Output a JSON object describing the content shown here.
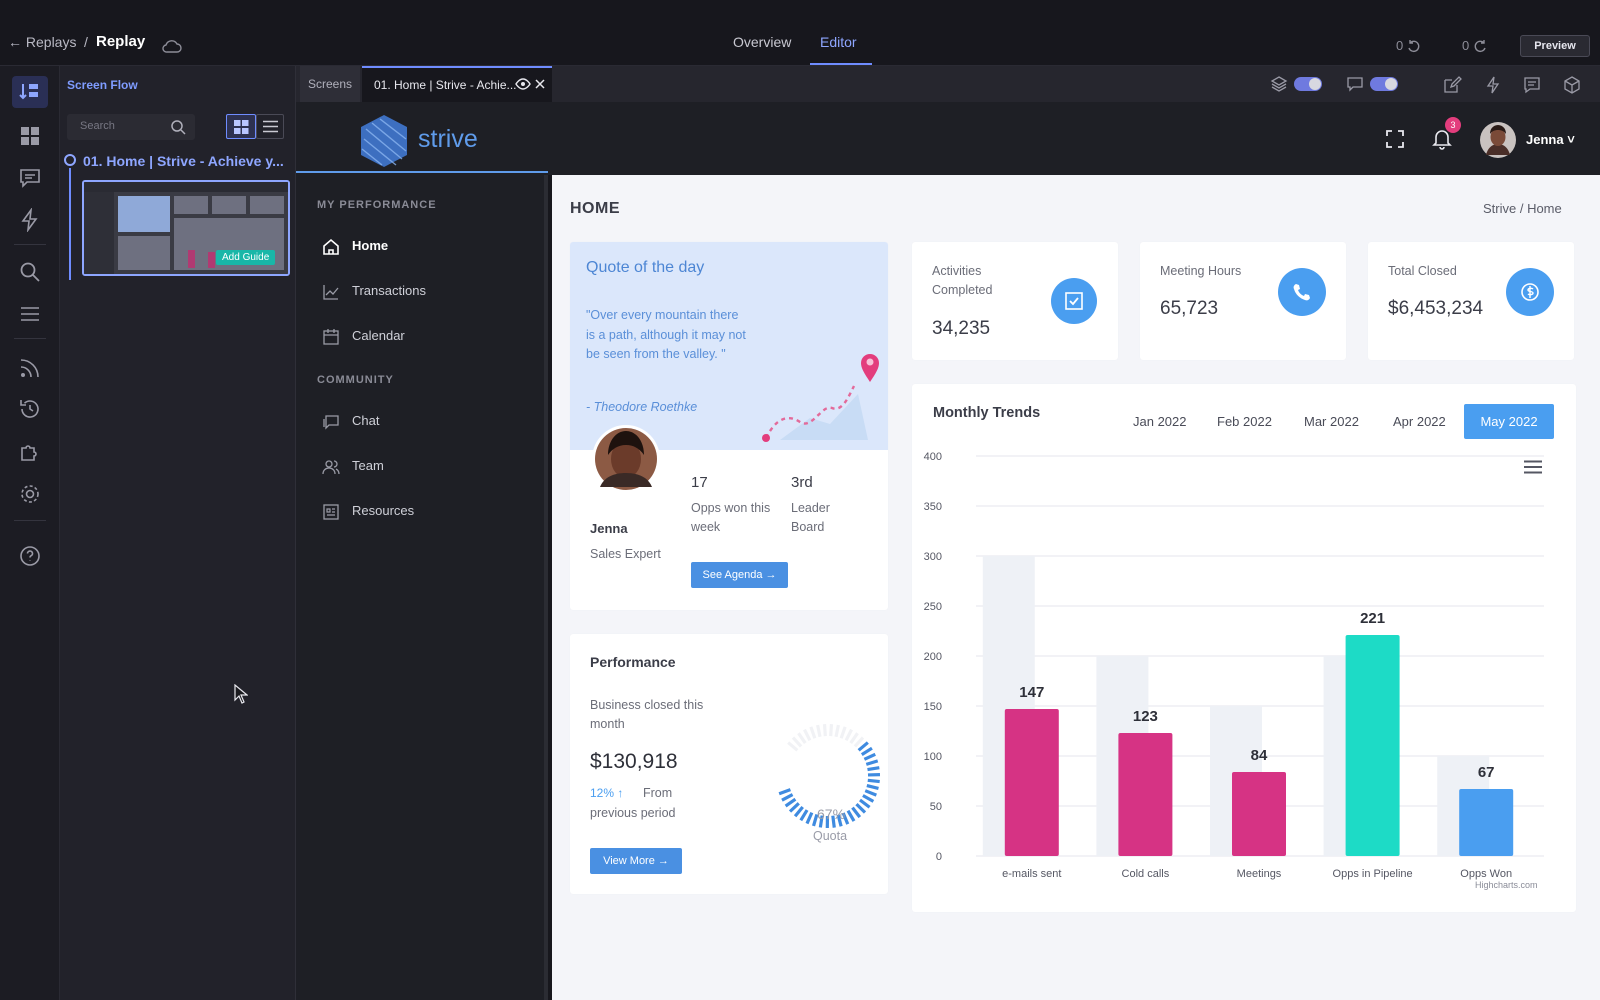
{
  "topbar": {
    "back_label": "Replays",
    "separator": "/",
    "current": "Replay",
    "tabs": [
      {
        "label": "Overview"
      },
      {
        "label": "Editor"
      }
    ],
    "undo_count": "0",
    "redo_count": "0",
    "preview_label": "Preview"
  },
  "flow": {
    "title": "Screen Flow",
    "search_placeholder": "Search",
    "item_label": "01. Home | Strive - Achieve y...",
    "add_guide_label": "Add Guide"
  },
  "tabs": {
    "screens_label": "Screens",
    "active_label": "01. Home | Strive - Achie..."
  },
  "app": {
    "brand": "strive",
    "user_name": "Jenna",
    "notification_count": "3",
    "sidebar": {
      "section1": "MY PERFORMANCE",
      "section2": "COMMUNITY",
      "items": [
        {
          "label": "Home",
          "icon": "home-icon"
        },
        {
          "label": "Transactions",
          "icon": "chart-line-icon"
        },
        {
          "label": "Calendar",
          "icon": "calendar-icon"
        },
        {
          "label": "Chat",
          "icon": "chat-icon"
        },
        {
          "label": "Team",
          "icon": "team-icon"
        },
        {
          "label": "Resources",
          "icon": "resources-icon"
        }
      ]
    }
  },
  "page": {
    "title": "HOME",
    "breadcrumb": "Strive  /  Home"
  },
  "quote": {
    "title": "Quote of the day",
    "text": "\"Over every mountain there is a path, although it may not be seen from the valley. \"",
    "author": "- Theodore Roethke"
  },
  "profile": {
    "name": "Jenna",
    "role": "Sales Expert",
    "stat1_value": "17",
    "stat1_label": "Opps won this week",
    "stat2_value": "3rd",
    "stat2_label": "Leader Board",
    "agenda_label": "See Agenda"
  },
  "kpis": [
    {
      "label": "Activities Completed",
      "value": "34,235",
      "icon": "checkbox-icon"
    },
    {
      "label": "Meeting Hours",
      "value": "65,723",
      "icon": "phone-icon"
    },
    {
      "label": "Total Closed",
      "value": "$6,453,234",
      "icon": "dollar-icon"
    }
  ],
  "performance": {
    "title": "Performance",
    "desc": "Business closed this month",
    "amount": "$130,918",
    "change": "12%",
    "change_text": "From",
    "change_text2": "previous period",
    "view_more_label": "View More",
    "gauge_pct": "67%",
    "gauge_label": "Quota",
    "gauge_value": 0.67
  },
  "trends": {
    "title": "Monthly Trends",
    "months": [
      "Jan 2022",
      "Feb 2022",
      "Mar 2022",
      "Apr 2022",
      "May 2022"
    ],
    "credits": "Highcharts.com"
  },
  "chart_data": {
    "type": "bar",
    "title": "Monthly Trends",
    "categories": [
      "e-mails sent",
      "Cold calls",
      "Meetings",
      "Opps in Pipeline",
      "Opps Won"
    ],
    "series": [
      {
        "values": [
          147,
          123,
          84,
          221,
          67
        ],
        "colors": [
          "#d63384",
          "#d63384",
          "#d63384",
          "#1ddbc6",
          "#4a9ef0"
        ]
      },
      {
        "values": [
          300,
          200,
          150,
          200,
          100
        ],
        "color": "#eef1f6"
      }
    ],
    "ylim": [
      0,
      400
    ],
    "yticks": [
      "0",
      "50",
      "100",
      "150",
      "200",
      "250",
      "300",
      "350",
      "400"
    ],
    "data_labels": [
      "147",
      "123",
      "84",
      "221",
      "67"
    ],
    "grid": true
  },
  "colors": {
    "accent": "#6f8cff",
    "brand": "#5f9bea",
    "magenta": "#d63384",
    "teal": "#1ddbc6",
    "blue": "#4a9ef0"
  }
}
